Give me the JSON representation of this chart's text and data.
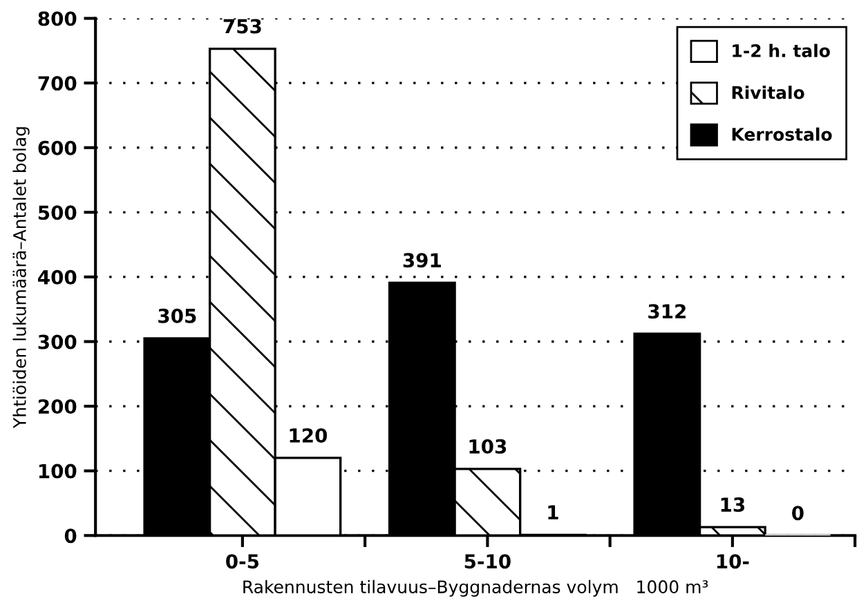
{
  "chart_data": {
    "type": "bar",
    "categories": [
      "0-5",
      "5-10",
      "10-"
    ],
    "series": [
      {
        "name": "Kerrostalo",
        "color": "#000000",
        "values": [
          305,
          391,
          312
        ]
      },
      {
        "name": "Rivitalo",
        "color": "#ffffff",
        "values": [
          753,
          103,
          13
        ]
      },
      {
        "name": "1-2 h. talo",
        "color": "#ffffff",
        "values": [
          120,
          1,
          0
        ]
      }
    ],
    "ylabel": "Yhtiöiden lukumäärä–Antalet bolag",
    "xlabel": "Rakennusten tilavuus–Byggnadernas volym   1000 m³",
    "ylim": [
      0,
      800
    ],
    "yticks": [
      0,
      100,
      200,
      300,
      400,
      500,
      600,
      700,
      800
    ],
    "grid": "y",
    "legend": "top right",
    "data_labels": true
  }
}
